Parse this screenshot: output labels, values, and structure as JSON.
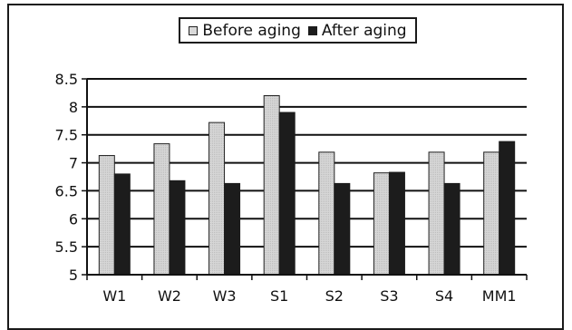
{
  "chart_data": {
    "type": "bar",
    "categories": [
      "W1",
      "W2",
      "W3",
      "S1",
      "S2",
      "S3",
      "S4",
      "MM1"
    ],
    "series": [
      {
        "name": "Before aging",
        "values": [
          7.13,
          7.34,
          7.72,
          8.2,
          7.19,
          6.82,
          7.19,
          7.19
        ]
      },
      {
        "name": "After aging",
        "values": [
          6.8,
          6.68,
          6.63,
          7.9,
          6.63,
          6.83,
          6.63,
          7.38
        ]
      }
    ],
    "ylim": [
      5,
      8.5
    ],
    "yticks": [
      "5",
      "5.5",
      "6",
      "6.5",
      "7",
      "7.5",
      "8",
      "8.5"
    ],
    "grid": true,
    "legend_position": "top-center",
    "colors": {
      "before": "#d6d6d6",
      "after": "#1c1c1c"
    }
  }
}
